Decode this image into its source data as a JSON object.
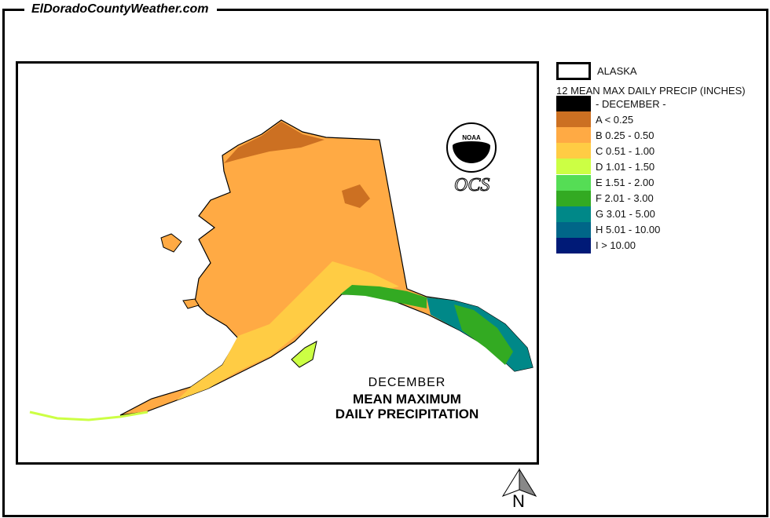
{
  "header": {
    "site_title": "ElDoradoCountyWeather.com"
  },
  "legend": {
    "boundary_label": "ALASKA",
    "title": "12 MEAN MAX DAILY PRECIP (INCHES)",
    "month_label": "- DECEMBER -",
    "month_color": "#000000",
    "classes": [
      {
        "label": "A < 0.25",
        "color": "#cc7022"
      },
      {
        "label": "B 0.25 - 0.50",
        "color": "#ffaa44"
      },
      {
        "label": "C 0.51 - 1.00",
        "color": "#ffcc44"
      },
      {
        "label": "D 1.01 - 1.50",
        "color": "#ccff44"
      },
      {
        "label": "E 1.51 - 2.00",
        "color": "#55dd55"
      },
      {
        "label": "F 2.01 - 3.00",
        "color": "#33aa22"
      },
      {
        "label": "G 3.01 - 5.00",
        "color": "#008888"
      },
      {
        "label": "H 5.01 - 10.00",
        "color": "#006688"
      },
      {
        "label": "I > 10.00",
        "color": "#001a77"
      }
    ]
  },
  "map": {
    "caption_month": "DECEMBER",
    "caption_line1": "MEAN MAXIMUM",
    "caption_line2": "DAILY PRECIPITATION",
    "logo_text": "NOAA",
    "logo_subtext": "OCS",
    "north_label": "N"
  }
}
